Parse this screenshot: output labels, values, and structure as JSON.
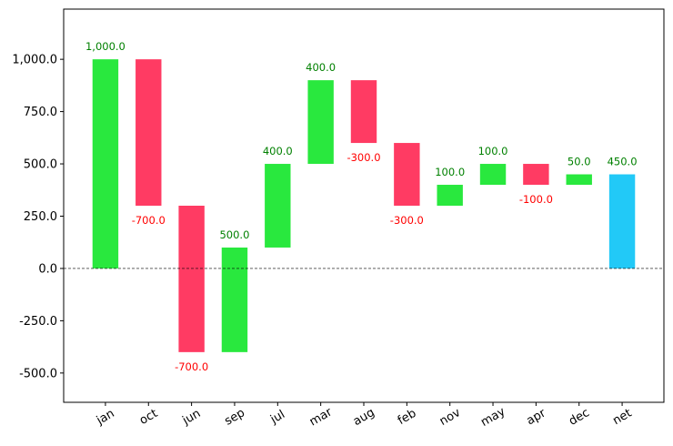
{
  "chart_data": {
    "type": "waterfall",
    "categories": [
      "jan",
      "oct",
      "jun",
      "sep",
      "jul",
      "mar",
      "aug",
      "feb",
      "nov",
      "may",
      "apr",
      "dec",
      "net"
    ],
    "values": [
      1000,
      -700,
      -700,
      500,
      400,
      400,
      -300,
      -300,
      100,
      100,
      -100,
      50,
      450
    ],
    "value_labels": [
      "1,000.0",
      "-700.0",
      "-700.0",
      "500.0",
      "400.0",
      "400.0",
      "-300.0",
      "-300.0",
      "100.0",
      "100.0",
      "-100.0",
      "50.0",
      "450.0"
    ],
    "show_total": true,
    "colors": {
      "increase": "#29e83e",
      "decrease": "#ff3b63",
      "total": "#22c9f7"
    },
    "label_colors": {
      "positive": "green",
      "negative": "red"
    },
    "ylim": [
      -640,
      1240
    ],
    "yticks": [
      {
        "value": -500,
        "label": "-500.0"
      },
      {
        "value": -250,
        "label": "-250.0"
      },
      {
        "value": 0,
        "label": "0.0"
      },
      {
        "value": 250,
        "label": "250.0"
      },
      {
        "value": 500,
        "label": "500.0"
      },
      {
        "value": 750,
        "label": "750.0"
      },
      {
        "value": 1000,
        "label": "1,000.0"
      }
    ],
    "zero_line": true
  }
}
